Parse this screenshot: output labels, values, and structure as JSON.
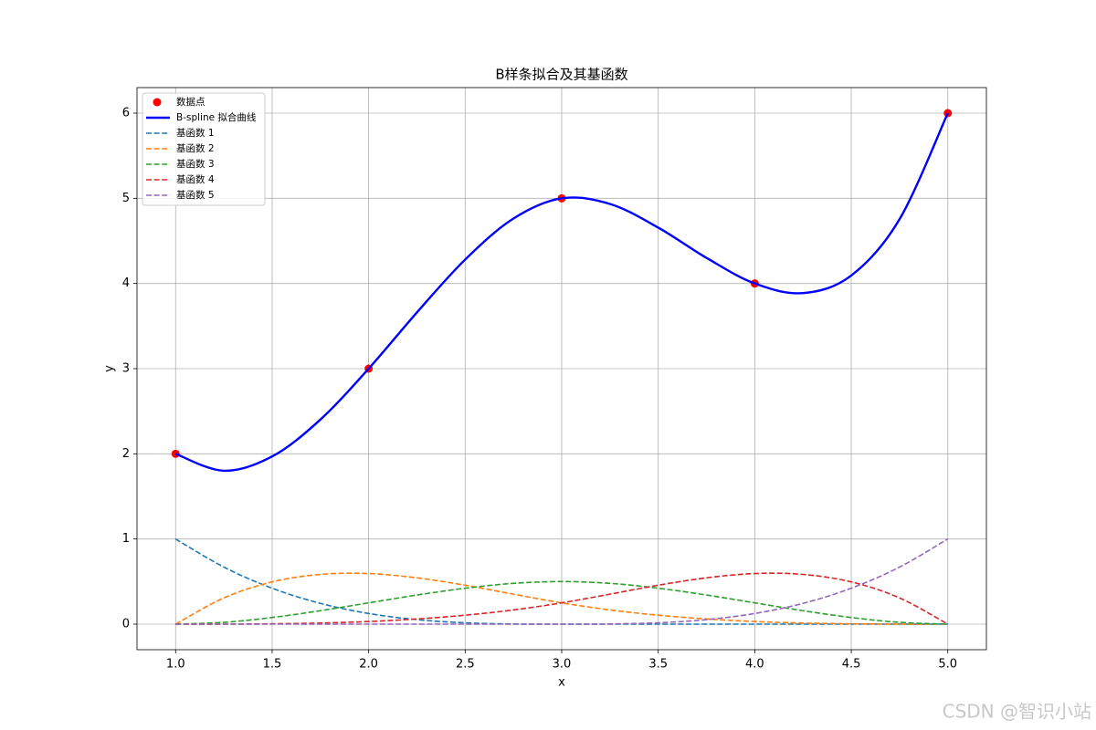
{
  "chart_data": {
    "type": "line",
    "title": "B样条拟合及其基函数",
    "xlabel": "x",
    "ylabel": "y",
    "x": [
      1,
      1.25,
      1.5,
      1.75,
      2,
      2.25,
      2.5,
      2.75,
      3,
      3.25,
      3.5,
      3.75,
      4,
      4.25,
      4.5,
      4.75,
      5
    ],
    "series": [
      {
        "name": "数据点",
        "type": "scatter",
        "color": "#ff0000",
        "x": [
          1,
          2,
          3,
          4,
          5
        ],
        "values": [
          2,
          3,
          5,
          4,
          6
        ]
      },
      {
        "name": "B-spline 拟合曲线",
        "color": "#0000ff",
        "linestyle": "solid",
        "values": [
          2,
          1.801,
          1.969,
          2.402,
          3,
          3.66,
          4.281,
          4.762,
          5,
          4.934,
          4.656,
          4.301,
          4,
          3.887,
          4.094,
          4.754,
          6
        ]
      },
      {
        "name": "基函数 1",
        "color": "#1f77b4",
        "linestyle": "dashed",
        "values": [
          1,
          0.67,
          0.422,
          0.244,
          0.125,
          0.053,
          0.016,
          0.002,
          0,
          0,
          0,
          0,
          0,
          0,
          0,
          0,
          0
        ]
      },
      {
        "name": "基函数 2",
        "color": "#ff7f0e",
        "linestyle": "dashed",
        "values": [
          0,
          0.308,
          0.496,
          0.584,
          0.594,
          0.544,
          0.457,
          0.352,
          0.25,
          0.167,
          0.105,
          0.061,
          0.031,
          0.013,
          0.004,
          0,
          0
        ]
      },
      {
        "name": "基函数 3",
        "color": "#2ca02c",
        "linestyle": "dashed",
        "values": [
          0,
          0.021,
          0.078,
          0.158,
          0.25,
          0.342,
          0.422,
          0.479,
          0.5,
          0.479,
          0.422,
          0.342,
          0.25,
          0.158,
          0.078,
          0.021,
          0
        ]
      },
      {
        "name": "基函数 4",
        "color": "#d62728",
        "linestyle": "dashed",
        "values": [
          0,
          0,
          0.004,
          0.013,
          0.031,
          0.061,
          0.105,
          0.167,
          0.25,
          0.352,
          0.457,
          0.544,
          0.594,
          0.584,
          0.496,
          0.308,
          0
        ]
      },
      {
        "name": "基函数 5",
        "color": "#9467bd",
        "linestyle": "dashed",
        "values": [
          0,
          0,
          0,
          0,
          0,
          0,
          0,
          0,
          0,
          0.002,
          0.016,
          0.053,
          0.125,
          0.244,
          0.422,
          0.67,
          1
        ]
      }
    ],
    "xlim": [
      0.8,
      5.2
    ],
    "xticks": [
      {
        "value": 1,
        "label": "1.0"
      },
      {
        "value": 1.5,
        "label": "1.5"
      },
      {
        "value": 2,
        "label": "2.0"
      },
      {
        "value": 2.5,
        "label": "2.5"
      },
      {
        "value": 3,
        "label": "3.0"
      },
      {
        "value": 3.5,
        "label": "3.5"
      },
      {
        "value": 4,
        "label": "4.0"
      },
      {
        "value": 4.5,
        "label": "4.5"
      },
      {
        "value": 5,
        "label": "5.0"
      }
    ],
    "ylim": [
      -0.3,
      6.3
    ],
    "yticks": [
      0,
      1,
      2,
      3,
      4,
      5,
      6
    ],
    "grid": true,
    "legend": "upper left"
  },
  "watermark": "CSDN @智识小站"
}
